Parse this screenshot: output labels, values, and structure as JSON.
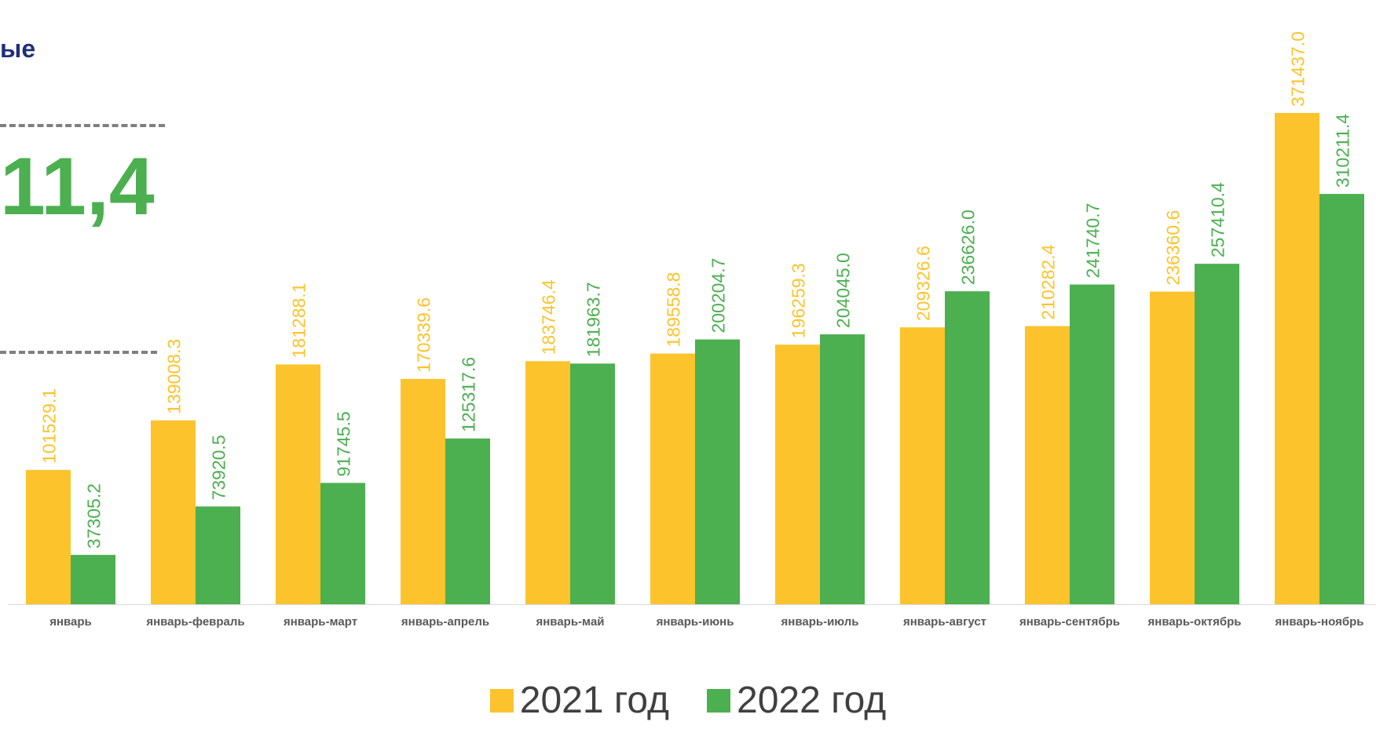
{
  "heading_fragment": "ые",
  "big_number": "11,4",
  "colors": {
    "series_2021": "#fdc32c",
    "series_2022": "#4caf50",
    "heading": "#1f2f7a",
    "axis": "#d9d9d9",
    "tick_text": "#595959"
  },
  "chart_data": {
    "type": "bar",
    "categories": [
      "январь",
      "январь-февраль",
      "январь-март",
      "январь-апрель",
      "январь-май",
      "январь-июнь",
      "январь-июль",
      "январь-август",
      "январь-сентябрь",
      "январь-октябрь",
      "январь-ноябрь"
    ],
    "series": [
      {
        "name": "2021 год",
        "values": [
          101529.1,
          139008.3,
          181288.1,
          170339.6,
          183746.4,
          189558.8,
          196259.3,
          209326.6,
          210282.4,
          236360.6,
          371437.0
        ]
      },
      {
        "name": "2022 год",
        "values": [
          37305.2,
          73920.5,
          91745.5,
          125317.6,
          181963.7,
          200204.7,
          204045.0,
          236626.0,
          241740.7,
          257410.4,
          310211.4
        ]
      }
    ],
    "data_labels": [
      [
        "101529.1",
        "139008.3",
        "181288.1",
        "170339.6",
        "183746.4",
        "189558.8",
        "196259.3",
        "209326.6",
        "210282.4",
        "236360.6",
        "371437.0"
      ],
      [
        "37305.2",
        "73920.5",
        "91745.5",
        "125317.6",
        "181963.7",
        "200204.7",
        "204045.0",
        "236626.0",
        "241740.7",
        "257410.4",
        "310211.4"
      ]
    ],
    "ylim": [
      0,
      372000
    ],
    "grid": false,
    "legend_position": "bottom"
  }
}
